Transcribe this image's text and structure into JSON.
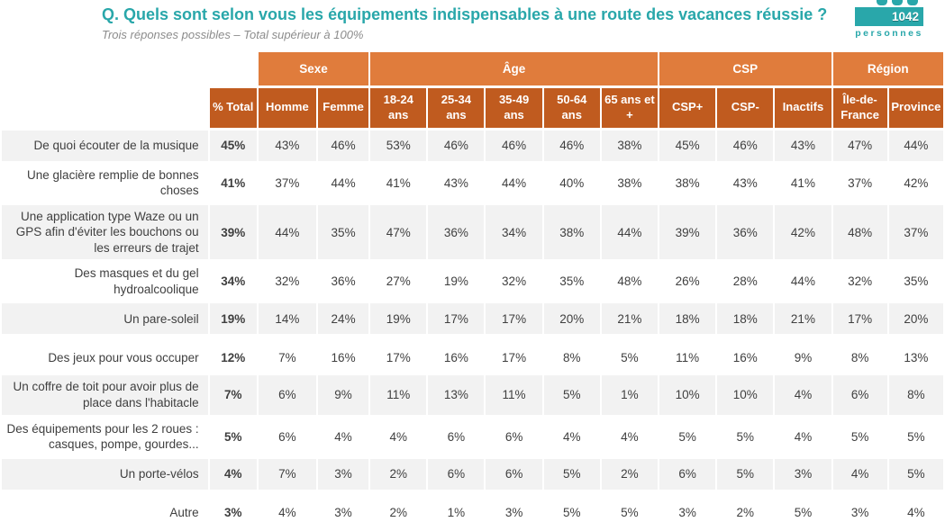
{
  "header": {
    "title": "Q. Quels sont selon vous les équipements indispensables à une route des vacances réussie ?",
    "subtitle": "Trois réponses possibles – Total supérieur à 100%",
    "badge": {
      "count": "1042",
      "label": "personnes",
      "icon": "people-icon"
    }
  },
  "colors": {
    "accent_teal": "#29A7AA",
    "group_orange": "#E07C3C",
    "header_orange": "#C05B1F",
    "row_stripe": "#F2F2F2",
    "text_dark": "#3F3F3F",
    "subtitle_gray": "#8C8C8C"
  },
  "chart_data": {
    "type": "table",
    "title": "Q. Quels sont selon vous les équipements indispensables à une route des vacances réussie ?",
    "subtitle": "Trois réponses possibles – Total supérieur à 100%",
    "sample": "1042 personnes",
    "column_groups": [
      {
        "label": "",
        "span": 2
      },
      {
        "label": "Sexe",
        "span": 2
      },
      {
        "label": "Âge",
        "span": 5
      },
      {
        "label": "CSP",
        "span": 3
      },
      {
        "label": "Région",
        "span": 2
      }
    ],
    "columns": [
      "% Total",
      "Homme",
      "Femme",
      "18-24 ans",
      "25-34 ans",
      "35-49 ans",
      "50-64 ans",
      "65 ans et +",
      "CSP+",
      "CSP-",
      "Inactifs",
      "Île-de-France",
      "Province"
    ],
    "section_breaks": [
      5,
      9
    ],
    "rows": [
      {
        "label": "De quoi écouter de la musique",
        "values": [
          "45%",
          "43%",
          "46%",
          "53%",
          "46%",
          "46%",
          "46%",
          "38%",
          "45%",
          "46%",
          "43%",
          "47%",
          "44%"
        ]
      },
      {
        "label": "Une glacière remplie de bonnes choses",
        "values": [
          "41%",
          "37%",
          "44%",
          "41%",
          "43%",
          "44%",
          "40%",
          "38%",
          "38%",
          "43%",
          "41%",
          "37%",
          "42%"
        ]
      },
      {
        "label": "Une application type Waze ou un GPS afin d'éviter les bouchons ou les erreurs de trajet",
        "values": [
          "39%",
          "44%",
          "35%",
          "47%",
          "36%",
          "34%",
          "38%",
          "44%",
          "39%",
          "36%",
          "42%",
          "48%",
          "37%"
        ]
      },
      {
        "label": "Des masques et du gel hydroalcoolique",
        "values": [
          "34%",
          "32%",
          "36%",
          "27%",
          "19%",
          "32%",
          "35%",
          "48%",
          "26%",
          "28%",
          "44%",
          "32%",
          "35%"
        ]
      },
      {
        "label": "Un pare-soleil",
        "values": [
          "19%",
          "14%",
          "24%",
          "19%",
          "17%",
          "17%",
          "20%",
          "21%",
          "18%",
          "18%",
          "21%",
          "17%",
          "20%"
        ]
      },
      {
        "label": "Des jeux pour vous occuper",
        "values": [
          "12%",
          "7%",
          "16%",
          "17%",
          "16%",
          "17%",
          "8%",
          "5%",
          "11%",
          "16%",
          "9%",
          "8%",
          "13%"
        ]
      },
      {
        "label": "Un coffre de toit pour avoir plus de place dans l'habitacle",
        "values": [
          "7%",
          "6%",
          "9%",
          "11%",
          "13%",
          "11%",
          "5%",
          "1%",
          "10%",
          "10%",
          "4%",
          "6%",
          "8%"
        ]
      },
      {
        "label": "Des équipements pour les 2 roues : casques, pompe, gourdes...",
        "values": [
          "5%",
          "6%",
          "4%",
          "4%",
          "6%",
          "6%",
          "4%",
          "4%",
          "5%",
          "5%",
          "4%",
          "5%",
          "5%"
        ]
      },
      {
        "label": "Un porte-vélos",
        "values": [
          "4%",
          "7%",
          "3%",
          "2%",
          "6%",
          "6%",
          "5%",
          "2%",
          "6%",
          "5%",
          "3%",
          "4%",
          "5%"
        ]
      },
      {
        "label": "Autre",
        "values": [
          "3%",
          "4%",
          "3%",
          "2%",
          "1%",
          "3%",
          "5%",
          "5%",
          "3%",
          "2%",
          "5%",
          "3%",
          "4%"
        ]
      }
    ]
  }
}
